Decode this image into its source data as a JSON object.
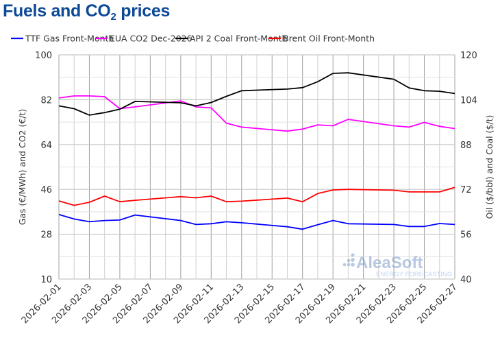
{
  "title": {
    "pre": "Fuels and CO",
    "sub": "2",
    "post": " prices"
  },
  "watermark": {
    "brand": "AleaSoft",
    "tagline": "ENERGY FORECASTING"
  },
  "chart_data": {
    "type": "line",
    "title": "Fuels and CO2 prices",
    "xlabel": "",
    "ylabel_left": "Gas (€/MWh) and CO2 (€/t)",
    "ylabel_right": "Oil ($/bbl) and Coal ($/t)",
    "ylim_left": [
      10,
      100
    ],
    "yticks_left": [
      10,
      28,
      46,
      64,
      82,
      100
    ],
    "ylim_right": [
      40,
      120
    ],
    "yticks_right": [
      40,
      56,
      72,
      88,
      104,
      120
    ],
    "xlim": [
      "2026-02-01",
      "2026-02-27"
    ],
    "xticks": [
      "2026-02-01",
      "2026-02-03",
      "2026-02-05",
      "2026-02-07",
      "2026-02-09",
      "2026-02-11",
      "2026-02-13",
      "2026-02-15",
      "2026-02-17",
      "2026-02-19",
      "2026-02-21",
      "2026-02-23",
      "2026-02-25",
      "2026-02-27"
    ],
    "grid": true,
    "legend_position": "top",
    "x": [
      "2026-02-01",
      "2026-02-02",
      "2026-02-03",
      "2026-02-04",
      "2026-02-05",
      "2026-02-06",
      "2026-02-09",
      "2026-02-10",
      "2026-02-11",
      "2026-02-12",
      "2026-02-13",
      "2026-02-16",
      "2026-02-17",
      "2026-02-18",
      "2026-02-19",
      "2026-02-20",
      "2026-02-23",
      "2026-02-24",
      "2026-02-25",
      "2026-02-26",
      "2026-02-27"
    ],
    "series": [
      {
        "name": "TTF Gas Front-Month",
        "axis": "left",
        "color": "#0000ff",
        "values": [
          35.9,
          34.1,
          33.0,
          33.5,
          33.7,
          35.7,
          33.5,
          31.9,
          32.2,
          33.0,
          32.6,
          31.0,
          30.0,
          31.8,
          33.5,
          32.2,
          31.9,
          31.1,
          31.1,
          32.3,
          31.9
        ]
      },
      {
        "name": "EUA CO2 Dec-2026",
        "axis": "left",
        "color": "#ff00ff",
        "values": [
          82.7,
          83.5,
          83.5,
          83.2,
          78.4,
          79.1,
          81.5,
          79.1,
          78.7,
          72.6,
          71.0,
          69.4,
          70.2,
          71.9,
          71.5,
          74.1,
          71.5,
          71.0,
          72.9,
          71.3,
          70.4
        ]
      },
      {
        "name": "API 2 Coal Front-Month",
        "axis": "right",
        "color": "#000000",
        "values": [
          101.8,
          100.8,
          98.5,
          99.4,
          100.6,
          103.4,
          102.9,
          101.8,
          103.0,
          105.2,
          107.2,
          107.8,
          108.3,
          110.4,
          113.4,
          113.6,
          111.3,
          108.2,
          107.2,
          107.0,
          106.2
        ]
      },
      {
        "name": "Brent Oil Front-Month",
        "axis": "right",
        "color": "#ff0000",
        "values": [
          67.9,
          66.3,
          67.4,
          69.6,
          67.6,
          68.1,
          69.4,
          69.0,
          69.6,
          67.6,
          67.8,
          68.9,
          67.6,
          70.5,
          71.8,
          72.0,
          71.7,
          71.1,
          71.1,
          71.1,
          72.7
        ]
      }
    ]
  }
}
